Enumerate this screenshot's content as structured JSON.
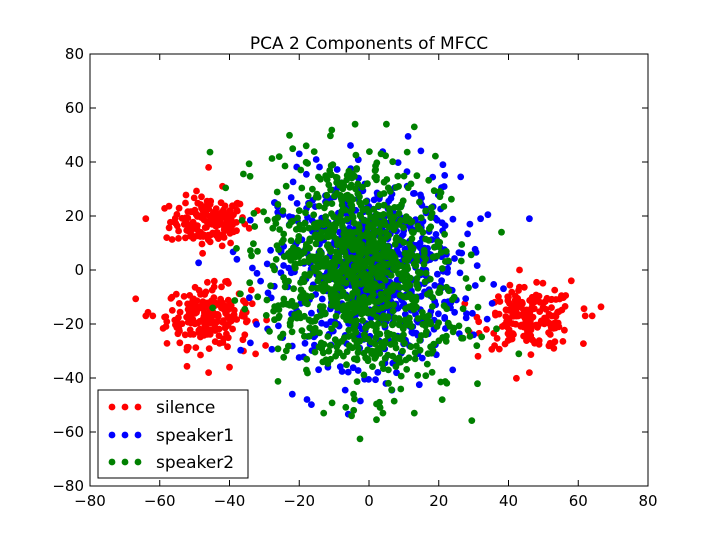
{
  "chart_data": {
    "type": "scatter",
    "title": "PCA 2 Components of MFCC",
    "xlabel": "",
    "ylabel": "",
    "xlim": [
      -80,
      80
    ],
    "ylim": [
      -80,
      80
    ],
    "xticks": [
      -80,
      -60,
      -40,
      -20,
      0,
      20,
      40,
      60,
      80
    ],
    "yticks": [
      -80,
      -60,
      -40,
      -20,
      0,
      20,
      40,
      60,
      80
    ],
    "xtick_labels": [
      "−80",
      "−60",
      "−40",
      "−20",
      "0",
      "20",
      "40",
      "60",
      "80"
    ],
    "ytick_labels": [
      "−80",
      "−60",
      "−40",
      "−20",
      "0",
      "20",
      "40",
      "60",
      "80"
    ],
    "grid": false,
    "legend_position": "lower-left",
    "series": [
      {
        "name": "silence",
        "color": "#ff0000",
        "clusters": [
          {
            "cx": -46,
            "cy": 18,
            "sx": 5.5,
            "sy": 4.5,
            "n": 150
          },
          {
            "cx": -46,
            "cy": -17,
            "sx": 6.0,
            "sy": 5.5,
            "n": 210
          },
          {
            "cx": 46,
            "cy": -18,
            "sx": 6.5,
            "sy": 5.5,
            "n": 180
          }
        ],
        "points": [
          [
            -64,
            -17
          ],
          [
            -62,
            -17
          ],
          [
            -64,
            19
          ],
          [
            -46,
            38
          ],
          [
            -46,
            -38
          ],
          [
            -58,
            12
          ],
          [
            -32,
            22
          ],
          [
            64,
            -17
          ],
          [
            62,
            -17
          ],
          [
            46,
            -38
          ],
          [
            58,
            -4
          ],
          [
            36,
            -28
          ],
          [
            -42,
            31
          ],
          [
            -36,
            -30
          ],
          [
            -40,
            -36
          ],
          [
            53,
            -29
          ],
          [
            40,
            -10
          ]
        ]
      },
      {
        "name": "speaker1",
        "color": "#0000ff",
        "clusters": [
          {
            "cx": 0,
            "cy": 0,
            "sx": 13,
            "sy": 17,
            "n": 800
          }
        ],
        "points": [
          [
            -22,
            -46
          ],
          [
            -3,
            34
          ],
          [
            24,
            -37
          ],
          [
            32,
            19
          ],
          [
            46,
            19
          ],
          [
            -34,
            -27
          ],
          [
            30,
            -24
          ],
          [
            -27,
            25
          ],
          [
            -20,
            43
          ]
        ]
      },
      {
        "name": "speaker2",
        "color": "#008000",
        "clusters": [
          {
            "cx": -5,
            "cy": 10,
            "sx": 12,
            "sy": 16,
            "n": 650
          },
          {
            "cx": 0,
            "cy": -15,
            "sx": 13,
            "sy": 16,
            "n": 450
          }
        ],
        "points": [
          [
            -4,
            54
          ],
          [
            5,
            54
          ],
          [
            -5,
            -54
          ],
          [
            4,
            -53
          ],
          [
            13,
            -53
          ],
          [
            -13,
            -53
          ],
          [
            13,
            53
          ],
          [
            -18,
            46
          ],
          [
            21,
            -48
          ],
          [
            38,
            14
          ],
          [
            -38,
            8
          ],
          [
            -33,
            21
          ],
          [
            3,
            -49
          ]
        ]
      }
    ]
  }
}
